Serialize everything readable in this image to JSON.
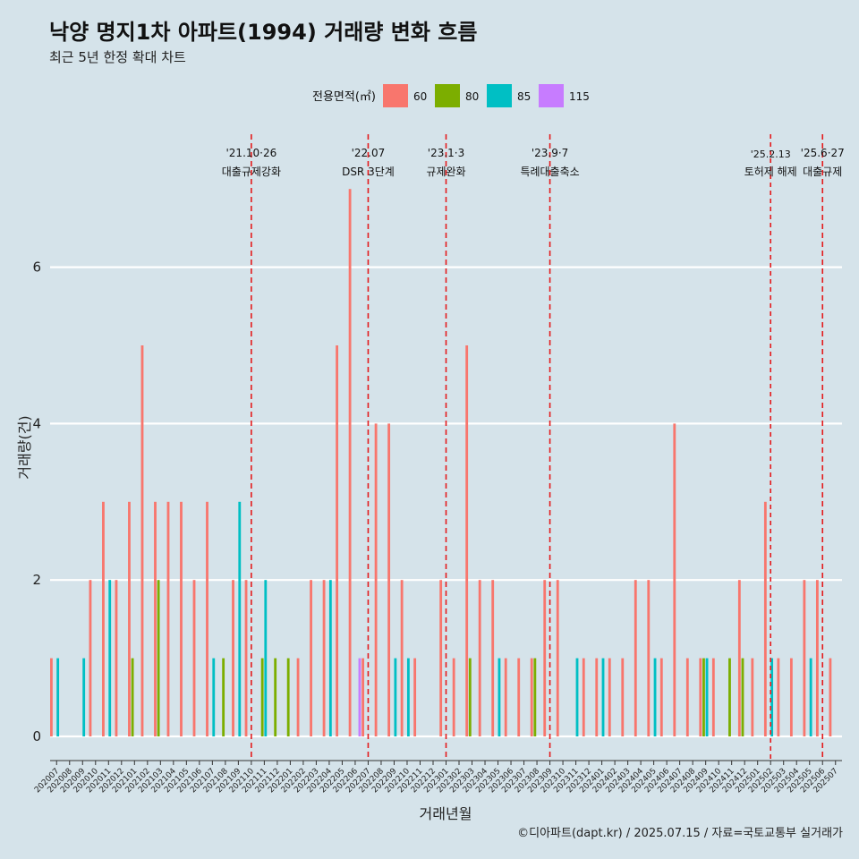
{
  "header": {
    "title": "낙양 명지1차 아파트(1994) 거래량 변화 흐름",
    "subtitle": "최근 5년 한정 확대 차트"
  },
  "caption": "©디아파트(dapt.kr) / 2025.07.15 / 자료=국토교통부 실거래가",
  "legend": {
    "title": "전용면적(㎡)",
    "items": [
      {
        "label": "60",
        "color": "#f8766d"
      },
      {
        "label": "80",
        "color": "#7cae00"
      },
      {
        "label": "85",
        "color": "#00bfc4"
      },
      {
        "label": "115",
        "color": "#c77cff"
      }
    ]
  },
  "chart_data": {
    "type": "bar",
    "xlabel": "거래년월",
    "ylabel": "거래량(건)",
    "ylim": [
      0,
      7.4
    ],
    "yticks": [
      0,
      2,
      4,
      6
    ],
    "grid": true,
    "legend_position": "top",
    "categories": [
      "202007",
      "202008",
      "202009",
      "202010",
      "202011",
      "202012",
      "202101",
      "202102",
      "202103",
      "202104",
      "202105",
      "202106",
      "202107",
      "202108",
      "202109",
      "202110",
      "202111",
      "202112",
      "202201",
      "202202",
      "202203",
      "202204",
      "202205",
      "202206",
      "202207",
      "202208",
      "202209",
      "202210",
      "202211",
      "202212",
      "202301",
      "202302",
      "202303",
      "202304",
      "202305",
      "202306",
      "202307",
      "202308",
      "202309",
      "202310",
      "202311",
      "202312",
      "202401",
      "202402",
      "202403",
      "202404",
      "202405",
      "202406",
      "202407",
      "202408",
      "202409",
      "202410",
      "202411",
      "202412",
      "202501",
      "202502",
      "202503",
      "202504",
      "202505",
      "202506",
      "202507"
    ],
    "series": [
      {
        "name": "60",
        "values": [
          1,
          0,
          0,
          2,
          3,
          2,
          3,
          5,
          3,
          3,
          3,
          2,
          3,
          0,
          2,
          2,
          0,
          0,
          0,
          1,
          2,
          2,
          5,
          7,
          1,
          4,
          4,
          2,
          1,
          0,
          2,
          1,
          5,
          2,
          2,
          1,
          1,
          1,
          2,
          2,
          0,
          1,
          1,
          1,
          1,
          2,
          2,
          1,
          4,
          1,
          1,
          1,
          0,
          2,
          1,
          3,
          1,
          1,
          2,
          2,
          1
        ]
      },
      {
        "name": "80",
        "values": [
          0,
          0,
          0,
          0,
          0,
          0,
          1,
          0,
          2,
          0,
          0,
          0,
          0,
          1,
          0,
          0,
          1,
          1,
          1,
          0,
          0,
          0,
          0,
          0,
          0,
          0,
          0,
          0,
          0,
          0,
          0,
          0,
          1,
          0,
          0,
          0,
          0,
          1,
          0,
          0,
          0,
          0,
          0,
          0,
          0,
          0,
          0,
          0,
          0,
          0,
          1,
          0,
          1,
          1,
          0,
          0,
          0,
          0,
          0,
          0,
          0
        ]
      },
      {
        "name": "85",
        "values": [
          1,
          0,
          1,
          0,
          2,
          0,
          0,
          0,
          0,
          0,
          0,
          0,
          1,
          0,
          3,
          0,
          2,
          0,
          0,
          0,
          0,
          2,
          0,
          0,
          0,
          0,
          1,
          1,
          0,
          0,
          0,
          0,
          0,
          0,
          1,
          0,
          0,
          0,
          0,
          0,
          1,
          0,
          1,
          0,
          0,
          0,
          1,
          0,
          0,
          0,
          1,
          0,
          0,
          0,
          0,
          1,
          0,
          0,
          1,
          0,
          0
        ]
      },
      {
        "name": "115",
        "values": [
          0,
          0,
          0,
          0,
          0,
          0,
          0,
          0,
          0,
          0,
          0,
          0,
          0,
          0,
          0,
          0,
          0,
          0,
          0,
          0,
          0,
          0,
          0,
          1,
          0,
          0,
          0,
          0,
          0,
          0,
          0,
          0,
          0,
          0,
          0,
          0,
          0,
          0,
          0,
          0,
          0,
          0,
          0,
          0,
          0,
          0,
          0,
          0,
          0,
          0,
          0,
          0,
          0,
          0,
          0,
          0,
          0,
          0,
          0,
          0,
          0
        ]
      }
    ],
    "events": [
      {
        "date": "'21.10·26",
        "label": "대출규제강화",
        "x": "202110"
      },
      {
        "date": "'22.07",
        "label": "DSR 3단계",
        "x": "202207"
      },
      {
        "date": "'23.1·3",
        "label": "규제완화",
        "x": "202301"
      },
      {
        "date": "'23.9·7",
        "label": "특례대출축소",
        "x": "202309"
      },
      {
        "date": "'25.2.13",
        "label": "토허제 해제",
        "x": "202502"
      },
      {
        "date": "'25.6·27",
        "label": "대출규제",
        "x": "202506"
      }
    ]
  }
}
